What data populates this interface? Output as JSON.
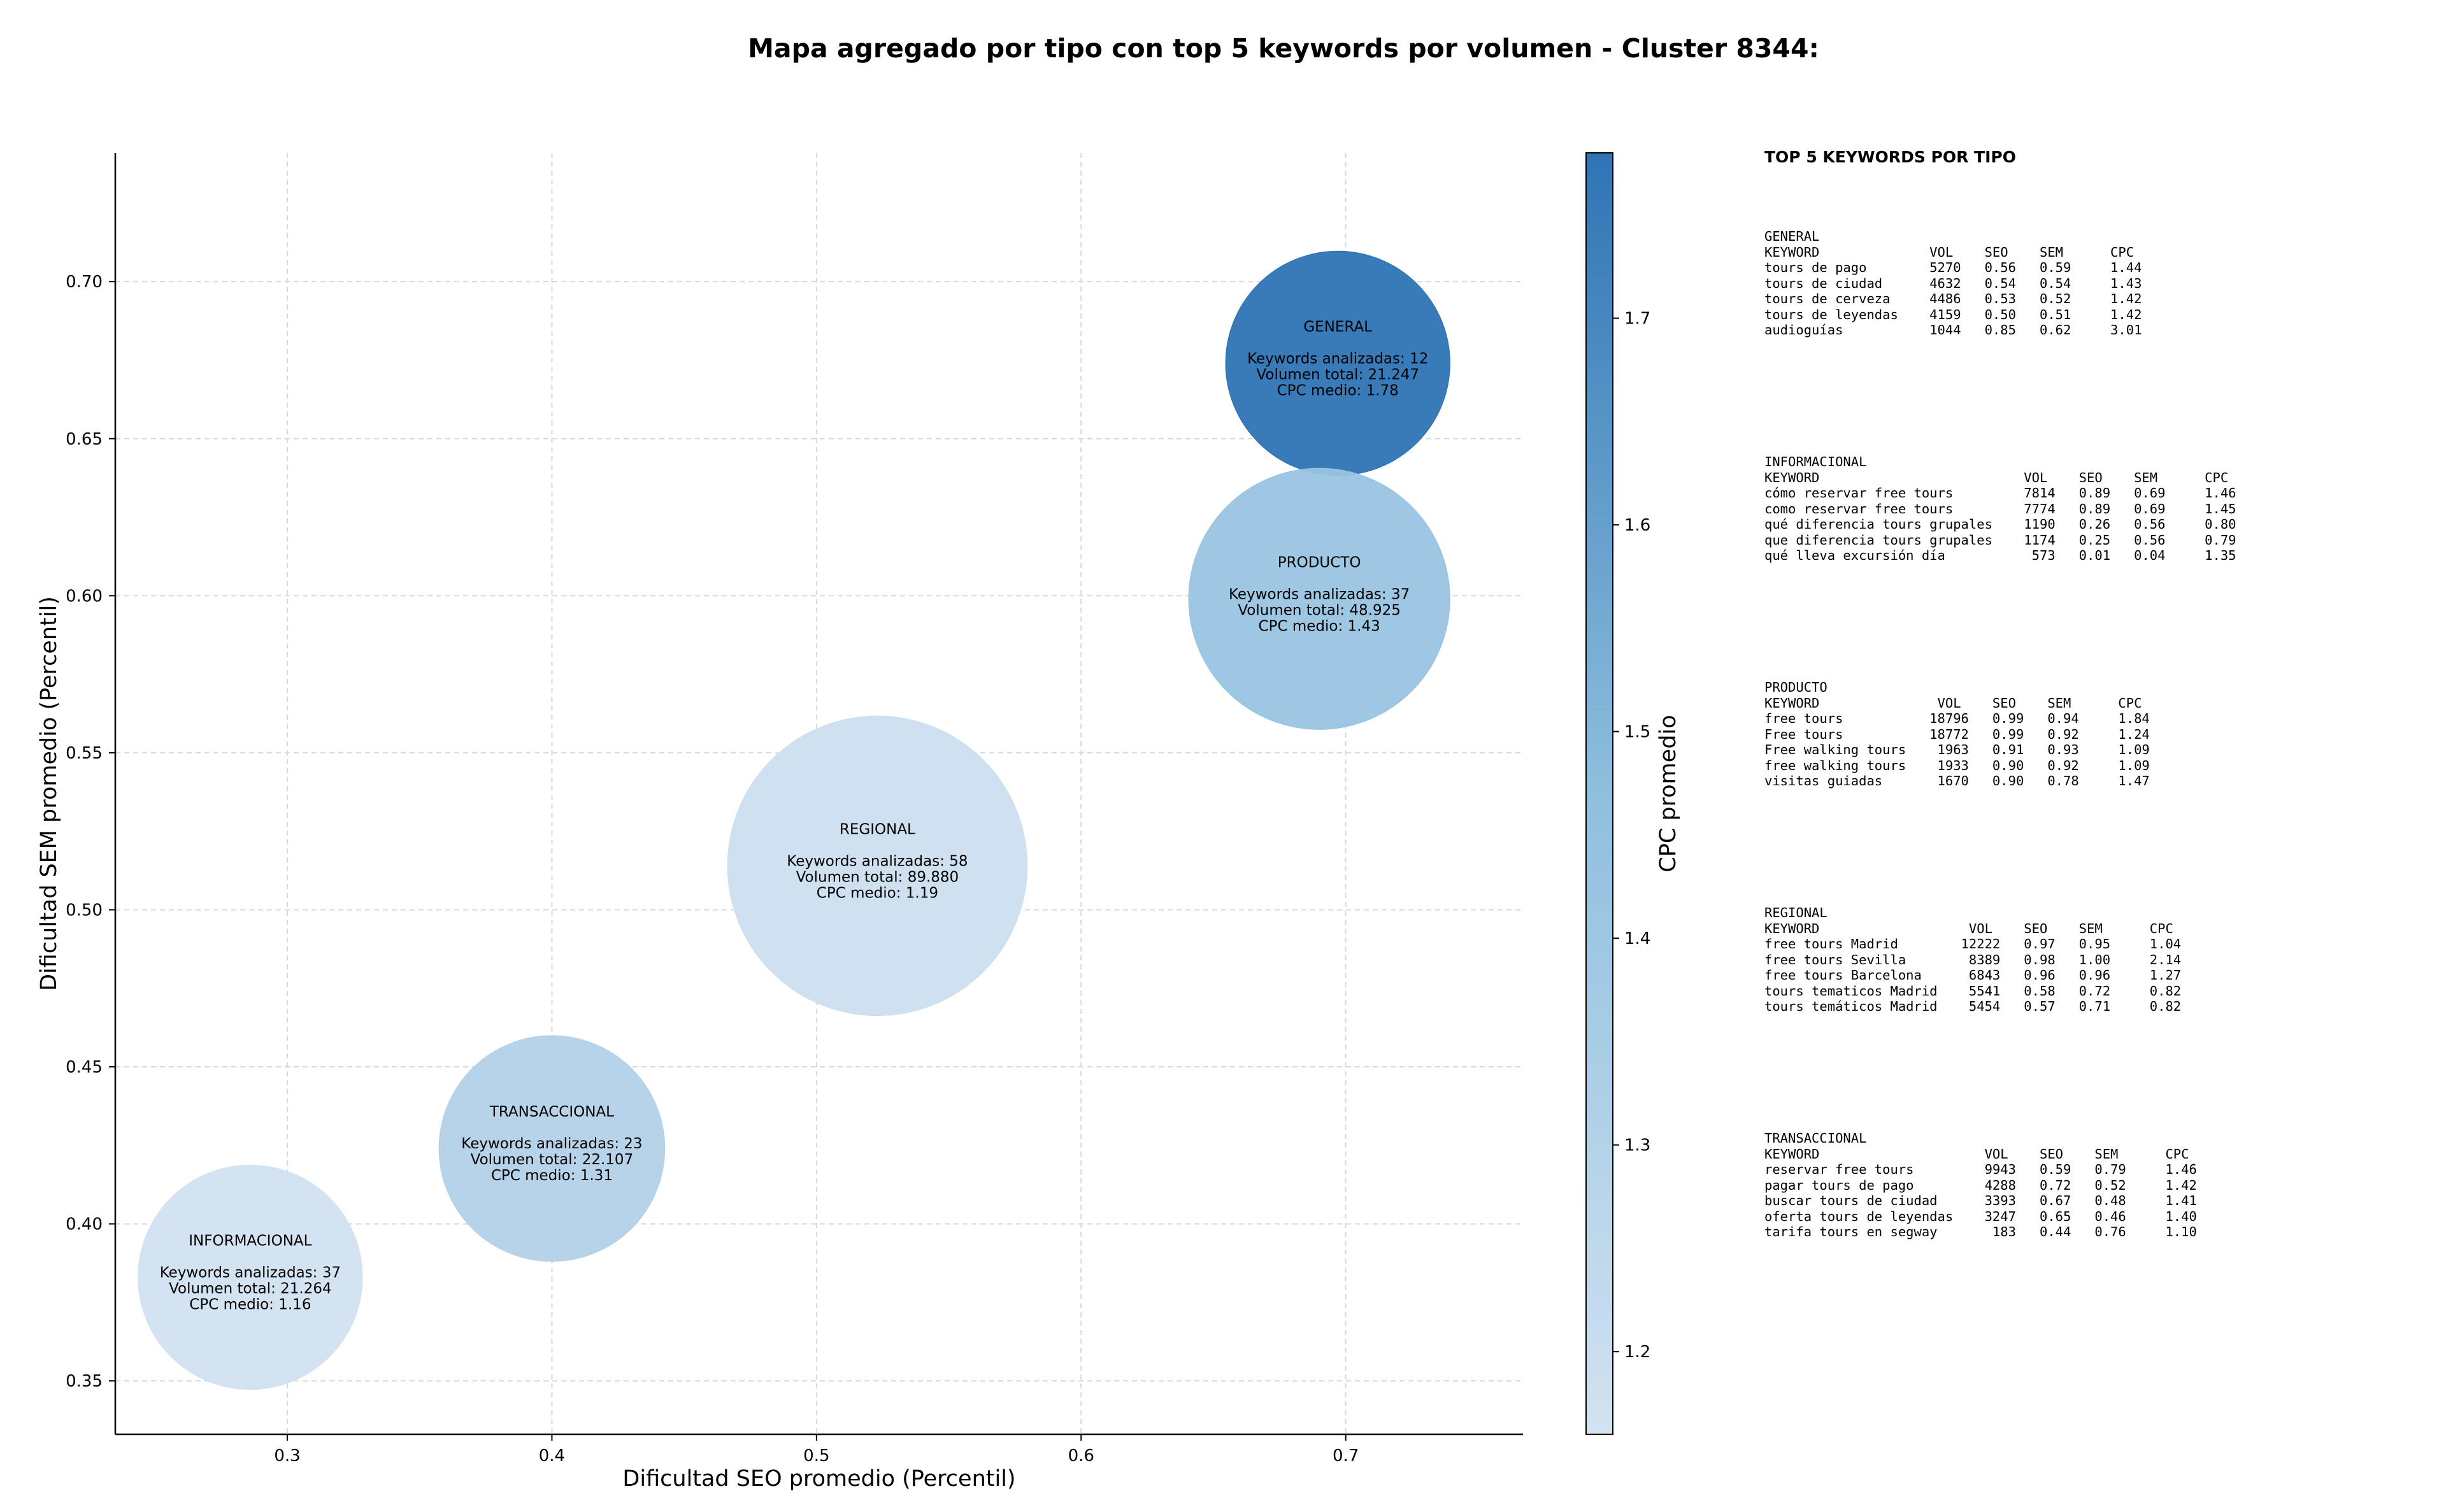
{
  "chart_data": {
    "type": "scatter",
    "title": "Mapa agregado por tipo con top 5 keywords por volumen - Cluster 8344:",
    "xlabel": "Dificultad SEO promedio (Percentil)",
    "ylabel": "Dificultad SEM promedio (Percentil)",
    "colorbar_label": "CPC promedio",
    "xlim": [
      0.235,
      0.767
    ],
    "ylim": [
      0.333,
      0.741
    ],
    "xticks": [
      "0.3",
      "0.4",
      "0.5",
      "0.6",
      "0.7"
    ],
    "yticks": [
      "0.35",
      "0.40",
      "0.45",
      "0.50",
      "0.55",
      "0.60",
      "0.65",
      "0.70"
    ],
    "colorbar_range": [
      1.16,
      1.78
    ],
    "colorbar_ticks": [
      "1.2",
      "1.3",
      "1.4",
      "1.5",
      "1.6",
      "1.7"
    ],
    "grid": true,
    "points": [
      {
        "label": "GENERAL",
        "x": 0.697,
        "y": 0.674,
        "n_line": "Keywords analizadas: 12",
        "vol_line": "Volumen total: 21.247",
        "cpc_line": "CPC medio: 1.78",
        "cpc": 1.78,
        "size": 21247
      },
      {
        "label": "PRODUCTO",
        "x": 0.69,
        "y": 0.599,
        "n_line": "Keywords analizadas: 37",
        "vol_line": "Volumen total: 48.925",
        "cpc_line": "CPC medio: 1.43",
        "cpc": 1.43,
        "size": 48925
      },
      {
        "label": "REGIONAL",
        "x": 0.523,
        "y": 0.514,
        "n_line": "Keywords analizadas: 58",
        "vol_line": "Volumen total: 89.880",
        "cpc_line": "CPC medio: 1.19",
        "cpc": 1.19,
        "size": 89880
      },
      {
        "label": "TRANSACCIONAL",
        "x": 0.4,
        "y": 0.424,
        "n_line": "Keywords analizadas: 23",
        "vol_line": "Volumen total: 22.107",
        "cpc_line": "CPC medio: 1.31",
        "cpc": 1.31,
        "size": 22107
      },
      {
        "label": "INFORMACIONAL",
        "x": 0.286,
        "y": 0.383,
        "n_line": "Keywords analizadas: 37",
        "vol_line": "Volumen total: 21.264",
        "cpc_line": "CPC medio: 1.16",
        "cpc": 1.16,
        "size": 21264
      }
    ]
  },
  "side_panel": {
    "title": "TOP 5 KEYWORDS POR TIPO",
    "blocks": [
      {
        "header": "GENERAL",
        "columns": "KEYWORD              VOL    SEO    SEM      CPC",
        "rows": [
          "tours de pago        5270   0.56   0.59     1.44",
          "tours de ciudad      4632   0.54   0.54     1.43",
          "tours de cerveza     4486   0.53   0.52     1.42",
          "tours de leyendas    4159   0.50   0.51     1.42",
          "audioguías           1044   0.85   0.62     3.01"
        ]
      },
      {
        "header": "INFORMACIONAL",
        "columns": "KEYWORD                          VOL    SEO    SEM      CPC",
        "rows": [
          "cómo reservar free tours         7814   0.89   0.69     1.46",
          "como reservar free tours         7774   0.89   0.69     1.45",
          "qué diferencia tours grupales    1190   0.26   0.56     0.80",
          "que diferencia tours grupales    1174   0.25   0.56     0.79",
          "qué lleva excursión día           573   0.01   0.04     1.35"
        ]
      },
      {
        "header": "PRODUCTO",
        "columns": "KEYWORD               VOL    SEO    SEM      CPC",
        "rows": [
          "free tours           18796   0.99   0.94     1.84",
          "Free tours           18772   0.99   0.92     1.24",
          "Free walking tours    1963   0.91   0.93     1.09",
          "free walking tours    1933   0.90   0.92     1.09",
          "visitas guiadas       1670   0.90   0.78     1.47"
        ]
      },
      {
        "header": "REGIONAL",
        "columns": "KEYWORD                   VOL    SEO    SEM      CPC",
        "rows": [
          "free tours Madrid        12222   0.97   0.95     1.04",
          "free tours Sevilla        8389   0.98   1.00     2.14",
          "free tours Barcelona      6843   0.96   0.96     1.27",
          "tours tematicos Madrid    5541   0.58   0.72     0.82",
          "tours temáticos Madrid    5454   0.57   0.71     0.82"
        ]
      },
      {
        "header": "TRANSACCIONAL",
        "columns": "KEYWORD                     VOL    SEO    SEM      CPC",
        "rows": [
          "reservar free tours         9943   0.59   0.79     1.46",
          "pagar tours de pago         4288   0.72   0.52     1.42",
          "buscar tours de ciudad      3393   0.67   0.48     1.41",
          "oferta tours de leyendas    3247   0.65   0.46     1.40",
          "tarifa tours en segway       183   0.44   0.76     1.10"
        ]
      }
    ]
  }
}
